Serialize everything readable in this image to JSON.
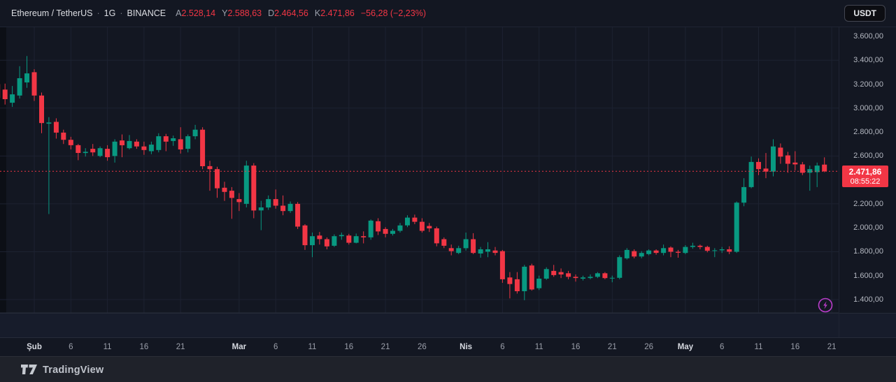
{
  "header": {
    "symbol": "Ethereum / TetherUS",
    "interval": "1G",
    "exchange": "BINANCE",
    "dot": "·",
    "ohlc": {
      "open_label": "A",
      "open": "2.528,14",
      "high_label": "Y",
      "high": "2.588,63",
      "low_label": "D",
      "low": "2.464,56",
      "close_label": "K",
      "close": "2.471,86",
      "change": "−56,28 (−2,23%)"
    },
    "currency_button": "USDT"
  },
  "price_scale": {
    "labels": [
      {
        "text": "3.600,00",
        "value": 3600
      },
      {
        "text": "3.400,00",
        "value": 3400
      },
      {
        "text": "3.200,00",
        "value": 3200
      },
      {
        "text": "3.000,00",
        "value": 3000
      },
      {
        "text": "2.800,00",
        "value": 2800
      },
      {
        "text": "2.600,00",
        "value": 2600
      },
      {
        "text": "2.200,00",
        "value": 2200
      },
      {
        "text": "2.000,00",
        "value": 2000
      },
      {
        "text": "1.800,00",
        "value": 1800
      },
      {
        "text": "1.600,00",
        "value": 1600
      },
      {
        "text": "1.400,00",
        "value": 1400
      }
    ],
    "badge": {
      "price": "2.471,86",
      "countdown": "08:55:22"
    }
  },
  "time_scale": {
    "ticks": [
      {
        "label": "Şub",
        "day": 0,
        "major": true
      },
      {
        "label": "6",
        "day": 5,
        "major": false
      },
      {
        "label": "11",
        "day": 10,
        "major": false
      },
      {
        "label": "16",
        "day": 15,
        "major": false
      },
      {
        "label": "21",
        "day": 20,
        "major": false
      },
      {
        "label": "Mar",
        "day": 28,
        "major": true
      },
      {
        "label": "6",
        "day": 33,
        "major": false
      },
      {
        "label": "11",
        "day": 38,
        "major": false
      },
      {
        "label": "16",
        "day": 43,
        "major": false
      },
      {
        "label": "21",
        "day": 48,
        "major": false
      },
      {
        "label": "26",
        "day": 53,
        "major": false
      },
      {
        "label": "Nis",
        "day": 59,
        "major": true
      },
      {
        "label": "6",
        "day": 64,
        "major": false
      },
      {
        "label": "11",
        "day": 69,
        "major": false
      },
      {
        "label": "16",
        "day": 74,
        "major": false
      },
      {
        "label": "21",
        "day": 79,
        "major": false
      },
      {
        "label": "26",
        "day": 84,
        "major": false
      },
      {
        "label": "May",
        "day": 89,
        "major": true
      },
      {
        "label": "6",
        "day": 94,
        "major": false
      },
      {
        "label": "11",
        "day": 99,
        "major": false
      },
      {
        "label": "16",
        "day": 104,
        "major": false
      },
      {
        "label": "21",
        "day": 109,
        "major": false
      }
    ]
  },
  "footer": {
    "logo_text": "TradingView"
  },
  "colors": {
    "up": "#089981",
    "down": "#f23645",
    "grid": "#1d2231",
    "price_line": "#f23645",
    "badge_bg": "#f23645",
    "lightning": "#bb3dcc"
  },
  "chart_data": {
    "type": "candlestick",
    "title": "Ethereum / TetherUS · 1G · BINANCE",
    "x_unit": "days since Feb 1 (Şub=Feb, Mar, Nis=Apr, May; Turkish locale)",
    "ylabel": "price (USDT)",
    "ylim": [
      1289,
      3682
    ],
    "grid_h_values": [
      3400,
      3000,
      2600,
      2200,
      1800,
      1400
    ],
    "current_price": 2471.86,
    "current_open": 2528.14,
    "current_high": 2588.63,
    "current_low": 2464.56,
    "countdown": "08:55:22",
    "legend_position": "top-left",
    "candles_format": [
      "day_offset",
      "open",
      "high",
      "low",
      "close"
    ],
    "candles": [
      [
        -5,
        3200,
        3240,
        3060,
        3085
      ],
      [
        -4,
        3155,
        3205,
        3030,
        3075
      ],
      [
        -3,
        3045,
        3185,
        3010,
        3115
      ],
      [
        -2,
        3105,
        3350,
        3080,
        3250
      ],
      [
        -1,
        3215,
        3435,
        3170,
        3290
      ],
      [
        0,
        3300,
        3325,
        3060,
        3105
      ],
      [
        1,
        3105,
        3130,
        2790,
        2875
      ],
      [
        2,
        2870,
        2925,
        2115,
        2880
      ],
      [
        3,
        2885,
        2915,
        2745,
        2795
      ],
      [
        4,
        2795,
        2820,
        2700,
        2735
      ],
      [
        5,
        2735,
        2760,
        2655,
        2690
      ],
      [
        6,
        2690,
        2700,
        2565,
        2625
      ],
      [
        7,
        2625,
        2665,
        2595,
        2635
      ],
      [
        8,
        2660,
        2700,
        2600,
        2630
      ],
      [
        9,
        2600,
        2680,
        2590,
        2665
      ],
      [
        10,
        2660,
        2690,
        2560,
        2590
      ],
      [
        11,
        2600,
        2740,
        2545,
        2720
      ],
      [
        12,
        2730,
        2780,
        2590,
        2690
      ],
      [
        13,
        2665,
        2775,
        2655,
        2725
      ],
      [
        14,
        2720,
        2740,
        2660,
        2680
      ],
      [
        15,
        2680,
        2720,
        2610,
        2650
      ],
      [
        16,
        2640,
        2720,
        2615,
        2695
      ],
      [
        17,
        2650,
        2790,
        2630,
        2765
      ],
      [
        18,
        2765,
        2785,
        2640,
        2720
      ],
      [
        19,
        2725,
        2770,
        2685,
        2748
      ],
      [
        20,
        2740,
        2840,
        2620,
        2655
      ],
      [
        21,
        2660,
        2780,
        2630,
        2765
      ],
      [
        22,
        2765,
        2860,
        2740,
        2820
      ],
      [
        23,
        2820,
        2840,
        2490,
        2515
      ],
      [
        24,
        2515,
        2560,
        2310,
        2490
      ],
      [
        25,
        2490,
        2510,
        2250,
        2330
      ],
      [
        26,
        2335,
        2385,
        2225,
        2300
      ],
      [
        27,
        2310,
        2340,
        2075,
        2250
      ],
      [
        28,
        2240,
        2290,
        2140,
        2215
      ],
      [
        29,
        2200,
        2560,
        2170,
        2520
      ],
      [
        30,
        2520,
        2540,
        2080,
        2145
      ],
      [
        31,
        2145,
        2225,
        1980,
        2170
      ],
      [
        32,
        2170,
        2270,
        2150,
        2240
      ],
      [
        33,
        2240,
        2320,
        2160,
        2185
      ],
      [
        34,
        2185,
        2270,
        2105,
        2140
      ],
      [
        35,
        2140,
        2220,
        2125,
        2200
      ],
      [
        36,
        2200,
        2215,
        1990,
        2010
      ],
      [
        37,
        2020,
        2030,
        1815,
        1855
      ],
      [
        38,
        1855,
        1960,
        1755,
        1930
      ],
      [
        39,
        1935,
        1965,
        1860,
        1905
      ],
      [
        40,
        1905,
        1920,
        1820,
        1845
      ],
      [
        41,
        1850,
        1945,
        1840,
        1930
      ],
      [
        42,
        1930,
        1960,
        1900,
        1940
      ],
      [
        43,
        1935,
        1950,
        1860,
        1875
      ],
      [
        44,
        1875,
        1952,
        1870,
        1930
      ],
      [
        45,
        1930,
        1970,
        1870,
        1920
      ],
      [
        46,
        1920,
        2070,
        1900,
        2060
      ],
      [
        47,
        2055,
        2080,
        1940,
        1970
      ],
      [
        48,
        1990,
        2005,
        1920,
        1950
      ],
      [
        49,
        1950,
        1990,
        1935,
        1975
      ],
      [
        50,
        1975,
        2040,
        1960,
        2020
      ],
      [
        51,
        2020,
        2105,
        2005,
        2085
      ],
      [
        52,
        2085,
        2110,
        2030,
        2050
      ],
      [
        53,
        2050,
        2080,
        1960,
        1975
      ],
      [
        54,
        2015,
        2040,
        1965,
        1995
      ],
      [
        55,
        1995,
        2010,
        1845,
        1870
      ],
      [
        56,
        1905,
        1920,
        1830,
        1850
      ],
      [
        57,
        1830,
        1860,
        1770,
        1805
      ],
      [
        58,
        1790,
        1850,
        1780,
        1830
      ],
      [
        59,
        1830,
        1960,
        1810,
        1905
      ],
      [
        60,
        1905,
        1955,
        1780,
        1790
      ],
      [
        61,
        1785,
        1840,
        1750,
        1820
      ],
      [
        62,
        1800,
        1880,
        1755,
        1820
      ],
      [
        63,
        1810,
        1840,
        1770,
        1790
      ],
      [
        64,
        1805,
        1815,
        1540,
        1570
      ],
      [
        65,
        1585,
        1630,
        1410,
        1530
      ],
      [
        66,
        1570,
        1630,
        1450,
        1470
      ],
      [
        67,
        1470,
        1690,
        1395,
        1675
      ],
      [
        68,
        1685,
        1700,
        1475,
        1485
      ],
      [
        69,
        1495,
        1600,
        1480,
        1575
      ],
      [
        70,
        1575,
        1670,
        1565,
        1655
      ],
      [
        71,
        1640,
        1690,
        1590,
        1605
      ],
      [
        72,
        1630,
        1660,
        1580,
        1610
      ],
      [
        73,
        1620,
        1640,
        1570,
        1590
      ],
      [
        74,
        1590,
        1610,
        1550,
        1580
      ],
      [
        75,
        1575,
        1600,
        1560,
        1585
      ],
      [
        76,
        1580,
        1610,
        1570,
        1590
      ],
      [
        77,
        1590,
        1630,
        1580,
        1620
      ],
      [
        78,
        1620,
        1630,
        1570,
        1580
      ],
      [
        79,
        1578,
        1600,
        1545,
        1582
      ],
      [
        80,
        1582,
        1770,
        1570,
        1755
      ],
      [
        81,
        1745,
        1830,
        1735,
        1815
      ],
      [
        82,
        1805,
        1820,
        1745,
        1760
      ],
      [
        83,
        1760,
        1805,
        1745,
        1790
      ],
      [
        84,
        1780,
        1820,
        1770,
        1810
      ],
      [
        85,
        1810,
        1820,
        1775,
        1790
      ],
      [
        86,
        1790,
        1860,
        1770,
        1830
      ],
      [
        87,
        1835,
        1845,
        1755,
        1800
      ],
      [
        88,
        1800,
        1815,
        1750,
        1792
      ],
      [
        89,
        1790,
        1855,
        1780,
        1840
      ],
      [
        90,
        1840,
        1875,
        1825,
        1850
      ],
      [
        91,
        1850,
        1860,
        1820,
        1840
      ],
      [
        92,
        1840,
        1850,
        1795,
        1808
      ],
      [
        93,
        1808,
        1830,
        1755,
        1812
      ],
      [
        94,
        1812,
        1840,
        1790,
        1820
      ],
      [
        95,
        1820,
        1845,
        1780,
        1800
      ],
      [
        96,
        1800,
        2220,
        1790,
        2210
      ],
      [
        97,
        2210,
        2415,
        2180,
        2340
      ],
      [
        98,
        2340,
        2595,
        2330,
        2550
      ],
      [
        99,
        2550,
        2580,
        2440,
        2490
      ],
      [
        100,
        2495,
        2625,
        2415,
        2470
      ],
      [
        101,
        2470,
        2740,
        2430,
        2680
      ],
      [
        102,
        2670,
        2705,
        2535,
        2595
      ],
      [
        103,
        2605,
        2635,
        2460,
        2535
      ],
      [
        104,
        2545,
        2640,
        2480,
        2530
      ],
      [
        105,
        2530,
        2550,
        2440,
        2460
      ],
      [
        106,
        2460,
        2520,
        2310,
        2490
      ],
      [
        107,
        2465,
        2545,
        2340,
        2520
      ],
      [
        108,
        2528.14,
        2588.63,
        2464.56,
        2471.86
      ]
    ]
  }
}
